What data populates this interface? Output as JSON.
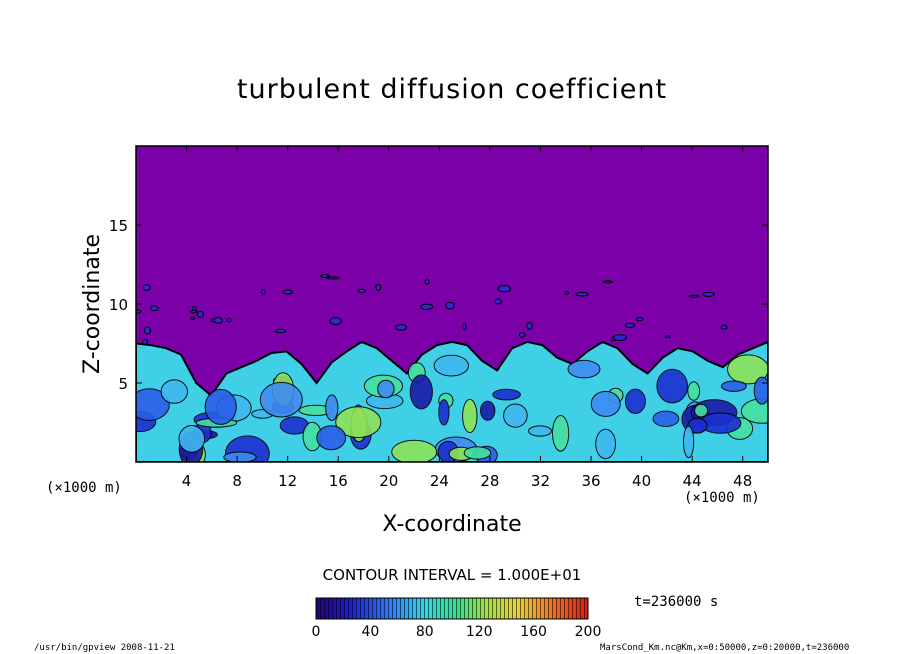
{
  "chart_data": {
    "type": "heatmap",
    "title": "turbulent diffusion coefficient",
    "xlabel": "X-coordinate",
    "ylabel": "Z-coordinate",
    "x_unit": "(×1000 m)",
    "xlim": [
      0,
      50
    ],
    "ylim": [
      0,
      20
    ],
    "x_ticks": [
      "4",
      "8",
      "12",
      "16",
      "20",
      "24",
      "28",
      "32",
      "36",
      "40",
      "44",
      "48"
    ],
    "y_ticks": [
      "5",
      "10",
      "15"
    ],
    "contour_interval": "CONTOUR INTERVAL = 1.000E+01",
    "colorbar": {
      "min": 0,
      "max": 200,
      "ticks": [
        "0",
        "40",
        "80",
        "120",
        "160",
        "200"
      ]
    },
    "time": "t=236000 s",
    "mixed_layer_top_km": [
      7.5,
      7.4,
      7.2,
      6.8,
      5.0,
      4.2,
      5.6,
      6.0,
      6.4,
      6.9,
      7.0,
      6.2,
      5.0,
      6.3,
      7.0,
      7.6,
      7.2,
      6.4,
      5.6,
      6.8,
      7.4,
      7.6,
      7.4,
      6.4,
      5.8,
      7.2,
      7.6,
      7.4,
      6.6,
      6.2,
      7.0,
      7.6,
      7.2,
      6.2,
      5.6,
      6.6,
      7.2,
      7.0,
      6.4,
      6.0,
      6.8,
      7.2,
      7.6
    ],
    "background_color": "#7b00a8"
  },
  "footer": {
    "left": "/usr/bin/gpview   2008-11-21",
    "right": "MarsCond_Km.nc@Km,x=0:50000,z=0:20000,t=236000"
  }
}
